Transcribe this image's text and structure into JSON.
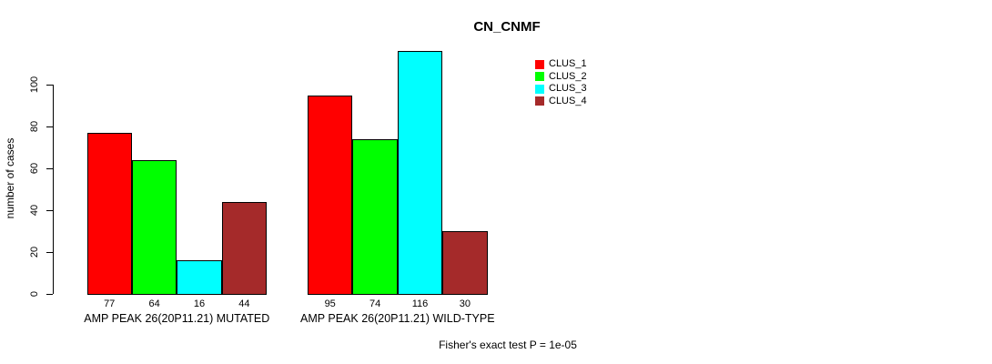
{
  "title": "CN_CNMF",
  "y_axis": {
    "label": "number of cases",
    "ticks": [
      0,
      20,
      40,
      60,
      80,
      100
    ]
  },
  "footer": "Fisher's exact test P = 1e-05",
  "chart_data": {
    "type": "bar",
    "title": "CN_CNMF",
    "xlabel": "",
    "ylabel": "number of cases",
    "yticks": [
      0,
      20,
      40,
      60,
      80,
      100
    ],
    "ylim": [
      0,
      120
    ],
    "grid": false,
    "legend_position": "top-right",
    "series": [
      "CLUS_1",
      "CLUS_2",
      "CLUS_3",
      "CLUS_4"
    ],
    "colors": [
      "#FF0000",
      "#00FF00",
      "#00FFFF",
      "#A52A2A"
    ],
    "groups": [
      {
        "label": "AMP PEAK 26(20P11.21) MUTATED",
        "values": [
          77,
          64,
          16,
          44
        ]
      },
      {
        "label": "AMP PEAK 26(20P11.21) WILD-TYPE",
        "values": [
          95,
          74,
          116,
          30
        ]
      }
    ],
    "annotation": "Fisher's exact test P = 1e-05"
  }
}
